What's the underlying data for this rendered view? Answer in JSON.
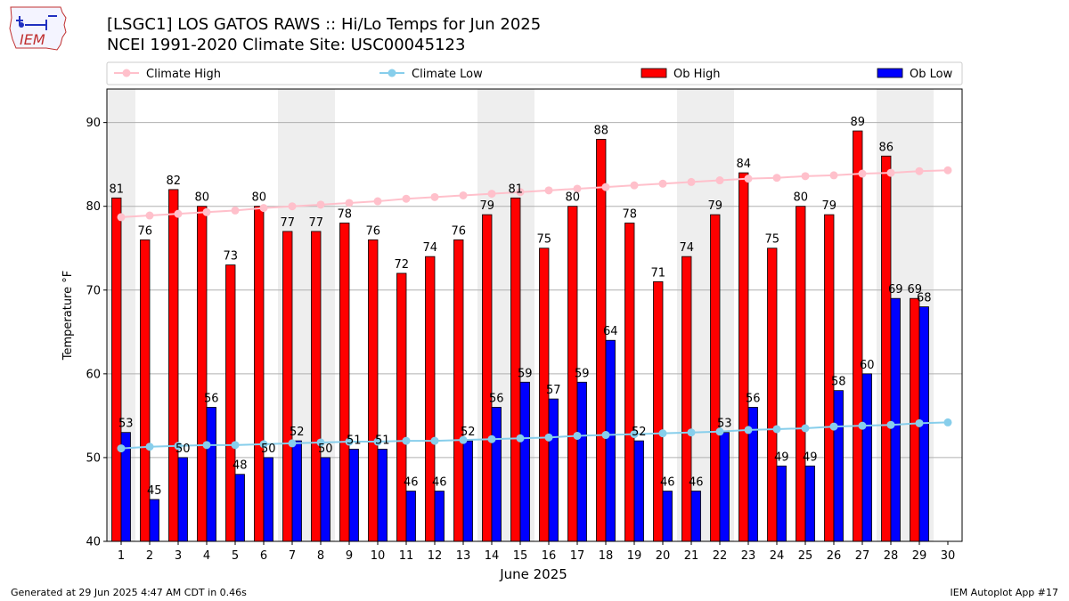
{
  "header": {
    "logo_text": "IEM",
    "title_line1": "[LSGC1] LOS GATOS RAWS :: Hi/Lo Temps for Jun 2025",
    "title_line2": "NCEI 1991-2020 Climate Site: USC00045123"
  },
  "footer": {
    "generated": "Generated at 29 Jun 2025 4:47 AM CDT in 0.46s",
    "app": "IEM Autoplot App #17"
  },
  "colors": {
    "climate_high": "#ffc0cb",
    "climate_low": "#87ceeb",
    "ob_high": "#ff0000",
    "ob_low": "#0000ff",
    "weekend_shade": "#eeeeee",
    "grid": "#b0b0b0"
  },
  "chart_data": {
    "type": "bar",
    "xlabel": "June 2025",
    "ylabel": "Temperature °F",
    "ylim": [
      40,
      94
    ],
    "yticks": [
      40,
      50,
      60,
      70,
      80,
      90
    ],
    "grid": "horizontal",
    "legend_placement": "top",
    "days": [
      1,
      2,
      3,
      4,
      5,
      6,
      7,
      8,
      9,
      10,
      11,
      12,
      13,
      14,
      15,
      16,
      17,
      18,
      19,
      20,
      21,
      22,
      23,
      24,
      25,
      26,
      27,
      28,
      29,
      30
    ],
    "shaded_days": [
      1,
      7,
      8,
      14,
      15,
      21,
      22,
      28,
      29
    ],
    "series": [
      {
        "name": "Climate High",
        "kind": "line",
        "color": "#ffc0cb",
        "values": [
          78.7,
          78.9,
          79.1,
          79.3,
          79.5,
          79.8,
          80.0,
          80.2,
          80.4,
          80.6,
          80.9,
          81.1,
          81.3,
          81.5,
          81.7,
          81.9,
          82.1,
          82.3,
          82.5,
          82.7,
          82.9,
          83.1,
          83.3,
          83.4,
          83.6,
          83.7,
          83.9,
          84.0,
          84.2,
          84.3
        ]
      },
      {
        "name": "Climate Low",
        "kind": "line",
        "color": "#87ceeb",
        "values": [
          51.1,
          51.3,
          51.4,
          51.5,
          51.5,
          51.6,
          51.7,
          51.8,
          51.9,
          51.9,
          52.0,
          52.0,
          52.1,
          52.2,
          52.3,
          52.4,
          52.6,
          52.7,
          52.8,
          52.9,
          53.0,
          53.1,
          53.3,
          53.4,
          53.5,
          53.7,
          53.8,
          53.9,
          54.1,
          54.2
        ]
      },
      {
        "name": "Ob High",
        "kind": "bar",
        "color": "#ff0000",
        "values": [
          81,
          76,
          82,
          80,
          73,
          80,
          77,
          77,
          78,
          76,
          72,
          74,
          76,
          79,
          81,
          75,
          80,
          88,
          78,
          71,
          74,
          79,
          84,
          75,
          80,
          79,
          89,
          86,
          69,
          null
        ]
      },
      {
        "name": "Ob Low",
        "kind": "bar",
        "color": "#0000ff",
        "values": [
          53,
          45,
          50,
          56,
          48,
          50,
          52,
          50,
          51,
          51,
          46,
          46,
          52,
          56,
          59,
          57,
          59,
          64,
          52,
          46,
          46,
          53,
          56,
          49,
          49,
          58,
          60,
          69,
          68,
          null
        ]
      }
    ]
  }
}
